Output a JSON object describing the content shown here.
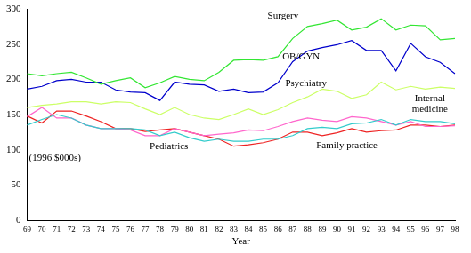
{
  "chart_data": {
    "type": "line",
    "x_label": "Year",
    "y_label": "(1996 $000s)",
    "categories": [
      "69",
      "70",
      "71",
      "72",
      "73",
      "74",
      "75",
      "76",
      "77",
      "78",
      "79",
      "80",
      "81",
      "82",
      "83",
      "84",
      "85",
      "86",
      "87",
      "88",
      "89",
      "90",
      "91",
      "92",
      "93",
      "94",
      "95",
      "96",
      "97",
      "98"
    ],
    "ylim": [
      0,
      300
    ],
    "yticks": [
      0,
      50,
      100,
      150,
      200,
      250,
      300
    ],
    "grid": false,
    "series": [
      {
        "name": "Surgery",
        "color": "#33e633",
        "values": [
          208,
          205,
          208,
          210,
          202,
          193,
          198,
          202,
          188,
          195,
          204,
          200,
          198,
          210,
          227,
          228,
          227,
          232,
          258,
          275,
          279,
          284,
          270,
          274,
          286,
          270,
          277,
          276,
          256,
          258
        ]
      },
      {
        "name": "OB/GYN",
        "color": "#0000cc",
        "values": [
          186,
          190,
          198,
          200,
          196,
          196,
          185,
          182,
          181,
          170,
          196,
          193,
          192,
          183,
          186,
          181,
          182,
          195,
          225,
          240,
          245,
          249,
          255,
          241,
          241,
          212,
          251,
          232,
          224,
          208
        ]
      },
      {
        "name": "Psychiatry",
        "color": "#ccff66",
        "values": [
          160,
          163,
          165,
          168,
          168,
          165,
          168,
          167,
          158,
          150,
          160,
          150,
          145,
          143,
          150,
          158,
          150,
          157,
          167,
          175,
          186,
          183,
          173,
          178,
          196,
          185,
          190,
          186,
          189,
          187
        ]
      },
      {
        "name": "Internal medicine",
        "color": "#33cccc",
        "values": [
          135,
          143,
          150,
          145,
          135,
          130,
          130,
          130,
          128,
          120,
          125,
          117,
          112,
          115,
          112,
          112,
          115,
          115,
          120,
          130,
          132,
          130,
          137,
          138,
          143,
          135,
          143,
          140,
          140,
          137
        ]
      },
      {
        "name": "Pediatrics",
        "color": "#ff66cc",
        "values": [
          147,
          160,
          145,
          145,
          135,
          130,
          130,
          128,
          120,
          120,
          130,
          125,
          120,
          122,
          124,
          128,
          127,
          133,
          140,
          145,
          142,
          140,
          147,
          145,
          140,
          135,
          140,
          133,
          133,
          134
        ]
      },
      {
        "name": "Family practice",
        "color": "#ee2222",
        "values": [
          148,
          138,
          155,
          155,
          148,
          140,
          130,
          130,
          126,
          128,
          130,
          125,
          120,
          115,
          105,
          107,
          110,
          115,
          125,
          125,
          120,
          124,
          130,
          125,
          127,
          128,
          135,
          135,
          133,
          135
        ]
      }
    ]
  }
}
